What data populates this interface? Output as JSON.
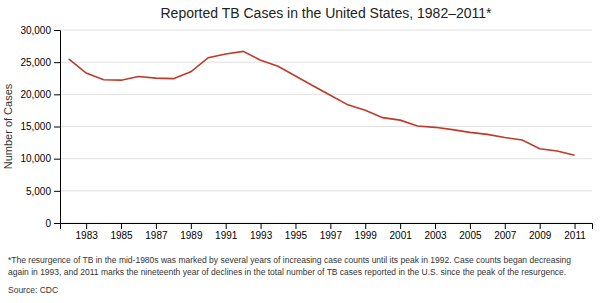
{
  "chart_data": {
    "type": "line",
    "title": "Reported TB Cases in the United States, 1982–2011*",
    "ylabel": "Number of Cases",
    "x": [
      1982,
      1983,
      1984,
      1985,
      1986,
      1987,
      1988,
      1989,
      1990,
      1991,
      1992,
      1993,
      1994,
      1995,
      1996,
      1997,
      1998,
      1999,
      2000,
      2001,
      2002,
      2003,
      2004,
      2005,
      2006,
      2007,
      2008,
      2009,
      2010,
      2011
    ],
    "values": [
      25520,
      23316,
      22255,
      22201,
      22768,
      22517,
      22436,
      23495,
      25701,
      26283,
      26673,
      25313,
      24361,
      22860,
      21337,
      19851,
      18361,
      17531,
      16377,
      15989,
      15075,
      14871,
      14517,
      14093,
      13779,
      13293,
      12898,
      11545,
      11182,
      10528
    ],
    "color": "#c0392b",
    "xlim": [
      1981.5,
      2012
    ],
    "xticks": [
      1983,
      1985,
      1987,
      1989,
      1991,
      1993,
      1995,
      1997,
      1999,
      2001,
      2003,
      2005,
      2007,
      2009,
      2011
    ],
    "ylim": [
      0,
      30000
    ],
    "yticks": [
      0,
      {
        "value": 5000,
        "label": "5,000"
      },
      {
        "value": 10000,
        "label": "10,000"
      },
      {
        "value": 15000,
        "label": "15,000"
      },
      {
        "value": 20000,
        "label": "20,000"
      },
      {
        "value": 25000,
        "label": "25,000"
      },
      {
        "value": 30000,
        "label": "30,000"
      }
    ],
    "grid": true,
    "annotations": [
      "*The resurgence of TB in the mid-1980s was marked by several years of increasing case counts until its peak in 1992. Case counts began decreasing",
      "again in 1993, and 2011 marks the nineteenth year of declines in the total number of TB cases reported in the U.S. since the peak of the resurgence.",
      "Source: CDC"
    ]
  }
}
